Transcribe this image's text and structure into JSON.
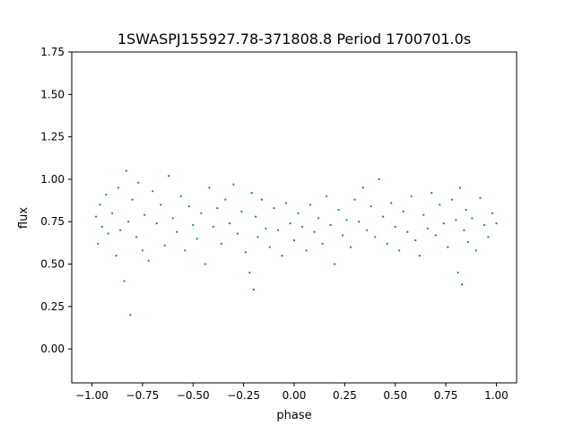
{
  "chart_data": {
    "type": "scatter",
    "title": "1SWASPJ155927.78-371808.8 Period 1700701.0s",
    "xlabel": "phase",
    "ylabel": "flux",
    "xlim": [
      -1.1,
      1.1
    ],
    "ylim": [
      -0.2,
      1.75
    ],
    "x_ticks": [
      -1.0,
      -0.75,
      -0.5,
      -0.25,
      0.0,
      0.25,
      0.5,
      0.75,
      1.0
    ],
    "x_tick_labels": [
      "−1.00",
      "−0.75",
      "−0.50",
      "−0.25",
      "0.00",
      "0.25",
      "0.50",
      "0.75",
      "1.00"
    ],
    "y_ticks": [
      0.0,
      0.25,
      0.5,
      0.75,
      1.0,
      1.25,
      1.5,
      1.75
    ],
    "y_tick_labels": [
      "0.00",
      "0.25",
      "0.50",
      "0.75",
      "1.00",
      "1.25",
      "1.50",
      "1.75"
    ],
    "grid": false,
    "legend": "none",
    "marker_color": "#1f77b4",
    "series": [
      {
        "points_approx": [
          [
            -0.98,
            0.78
          ],
          [
            -0.97,
            0.62
          ],
          [
            -0.96,
            0.85
          ],
          [
            -0.95,
            0.72
          ],
          [
            -0.93,
            0.91
          ],
          [
            -0.92,
            0.68
          ],
          [
            -0.9,
            0.8
          ],
          [
            -0.88,
            0.55
          ],
          [
            -0.87,
            0.95
          ],
          [
            -0.86,
            0.7
          ],
          [
            -0.84,
            0.4
          ],
          [
            -0.83,
            1.05
          ],
          [
            -0.82,
            0.75
          ],
          [
            -0.81,
            0.2
          ],
          [
            -0.8,
            0.88
          ],
          [
            -0.78,
            0.66
          ],
          [
            -0.77,
            0.98
          ],
          [
            -0.75,
            0.58
          ],
          [
            -0.74,
            0.79
          ],
          [
            -0.72,
            0.52
          ],
          [
            -0.7,
            0.93
          ],
          [
            -0.68,
            0.74
          ],
          [
            -0.66,
            0.85
          ],
          [
            -0.64,
            0.61
          ],
          [
            -0.62,
            1.02
          ],
          [
            -0.6,
            0.77
          ],
          [
            -0.58,
            0.69
          ],
          [
            -0.56,
            0.9
          ],
          [
            -0.54,
            0.58
          ],
          [
            -0.52,
            0.84
          ],
          [
            -0.5,
            0.73
          ],
          [
            -0.48,
            0.65
          ],
          [
            -0.46,
            0.8
          ],
          [
            -0.44,
            0.5
          ],
          [
            -0.42,
            0.95
          ],
          [
            -0.4,
            0.72
          ],
          [
            -0.38,
            0.83
          ],
          [
            -0.36,
            0.62
          ],
          [
            -0.34,
            0.88
          ],
          [
            -0.32,
            0.74
          ],
          [
            -0.3,
            0.97
          ],
          [
            -0.28,
            0.68
          ],
          [
            -0.26,
            0.81
          ],
          [
            -0.24,
            0.57
          ],
          [
            -0.22,
            0.45
          ],
          [
            -0.21,
            0.92
          ],
          [
            -0.2,
            0.35
          ],
          [
            -0.19,
            0.78
          ],
          [
            -0.18,
            0.66
          ],
          [
            -0.16,
            0.88
          ],
          [
            -0.14,
            0.71
          ],
          [
            -0.12,
            0.6
          ],
          [
            -0.1,
            0.83
          ],
          [
            -0.08,
            0.7
          ],
          [
            -0.06,
            0.55
          ],
          [
            -0.04,
            0.86
          ],
          [
            -0.02,
            0.74
          ],
          [
            0.0,
            0.64
          ],
          [
            0.02,
            0.8
          ],
          [
            0.04,
            0.72
          ],
          [
            0.06,
            0.58
          ],
          [
            0.08,
            0.85
          ],
          [
            0.1,
            0.69
          ],
          [
            0.12,
            0.77
          ],
          [
            0.14,
            0.62
          ],
          [
            0.16,
            0.9
          ],
          [
            0.18,
            0.73
          ],
          [
            0.2,
            0.5
          ],
          [
            0.22,
            0.82
          ],
          [
            0.24,
            0.67
          ],
          [
            0.26,
            0.76
          ],
          [
            0.28,
            0.6
          ],
          [
            0.3,
            0.88
          ],
          [
            0.32,
            0.75
          ],
          [
            0.34,
            0.95
          ],
          [
            0.36,
            0.7
          ],
          [
            0.38,
            0.84
          ],
          [
            0.4,
            0.66
          ],
          [
            0.42,
            1.0
          ],
          [
            0.44,
            0.78
          ],
          [
            0.46,
            0.62
          ],
          [
            0.48,
            0.86
          ],
          [
            0.5,
            0.72
          ],
          [
            0.52,
            0.58
          ],
          [
            0.54,
            0.81
          ],
          [
            0.56,
            0.69
          ],
          [
            0.58,
            0.9
          ],
          [
            0.6,
            0.64
          ],
          [
            0.62,
            0.55
          ],
          [
            0.64,
            0.79
          ],
          [
            0.66,
            0.71
          ],
          [
            0.68,
            0.92
          ],
          [
            0.7,
            0.67
          ],
          [
            0.72,
            0.85
          ],
          [
            0.74,
            0.74
          ],
          [
            0.76,
            0.6
          ],
          [
            0.78,
            0.88
          ],
          [
            0.8,
            0.76
          ],
          [
            0.81,
            0.45
          ],
          [
            0.82,
            0.95
          ],
          [
            0.83,
            0.38
          ],
          [
            0.84,
            0.7
          ],
          [
            0.85,
            0.82
          ],
          [
            0.86,
            0.63
          ],
          [
            0.88,
            0.77
          ],
          [
            0.9,
            0.58
          ],
          [
            0.92,
            0.89
          ],
          [
            0.94,
            0.73
          ],
          [
            0.96,
            0.66
          ],
          [
            0.98,
            0.8
          ],
          [
            1.0,
            0.74
          ]
        ]
      }
    ]
  }
}
